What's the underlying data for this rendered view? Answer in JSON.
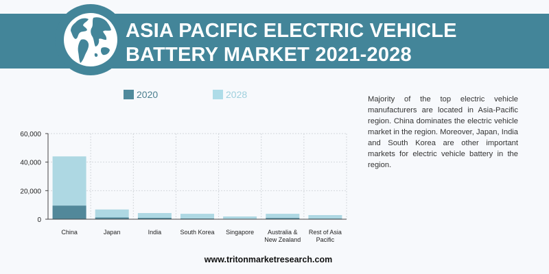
{
  "header": {
    "title_line1": "ASIA PACIFIC ELECTRIC VEHICLE",
    "title_line2": "BATTERY MARKET 2021-2028",
    "icon": "globe-icon",
    "band_color": "#438599"
  },
  "chart_data": {
    "type": "bar",
    "stacked": false,
    "overlapping": true,
    "title": "",
    "xlabel": "",
    "ylabel": "",
    "categories": [
      "China",
      "Japan",
      "India",
      "South Korea",
      "Singapore",
      "Australia & New Zealand",
      "Rest of Asia Pacific"
    ],
    "category_lines": [
      [
        "China"
      ],
      [
        "Japan"
      ],
      [
        "India"
      ],
      [
        "South Korea"
      ],
      [
        "Singapore"
      ],
      [
        "Australia &",
        "New Zealand"
      ],
      [
        "Rest of Asia",
        "Pacific"
      ]
    ],
    "series": [
      {
        "name": "2020",
        "color": "#52889a",
        "values": [
          9500,
          1200,
          900,
          500,
          200,
          800,
          400
        ]
      },
      {
        "name": "2028",
        "color": "#aed8e3",
        "values": [
          44000,
          6800,
          4300,
          3800,
          1900,
          3800,
          2900
        ]
      }
    ],
    "ylim": [
      0,
      60000
    ],
    "yticks": [
      0,
      20000,
      40000,
      60000
    ],
    "ytick_labels": [
      "0",
      "20,000",
      "40,000",
      "60,000"
    ],
    "grid": true,
    "legend_position": "top",
    "legend_colors": [
      "#4f8a9c",
      "#aedce8"
    ],
    "legend_text_colors": [
      "#4a7e8e",
      "#9fd0dd"
    ]
  },
  "description": "Majority of the top electric vehicle manufacturers are located in Asia-Pacific region. China dominates the electric vehicle market in the region. Moreover, Japan, India and South Korea are other important markets for electric vehicle battery in the region.",
  "footer": {
    "website": "www.tritonmarketresearch.com"
  }
}
